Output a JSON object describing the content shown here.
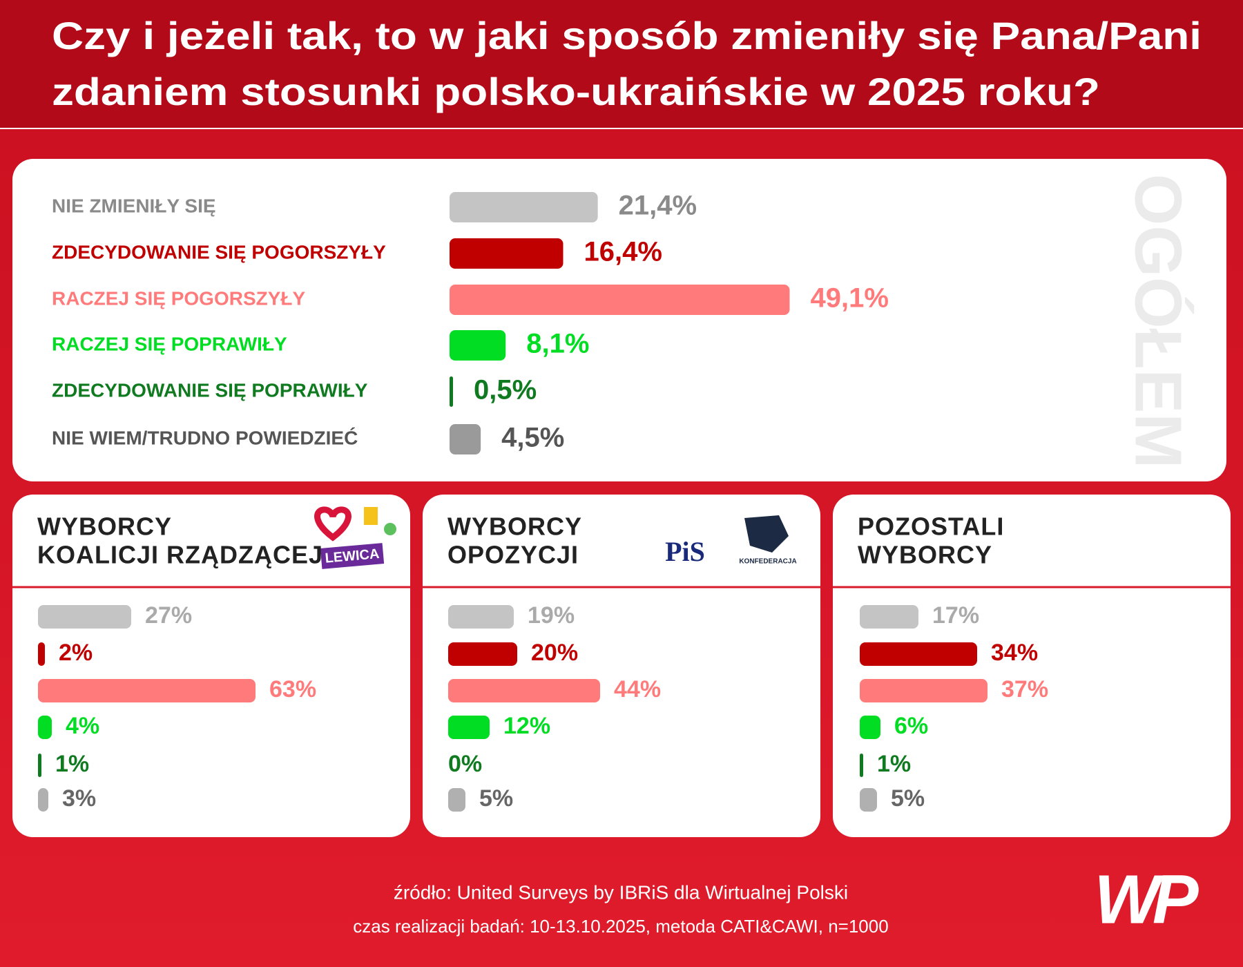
{
  "title": [
    "Czy i jeżeli tak, to w jaki sposób zmieniły się Pana/Pani",
    "zdaniem stosunki polsko-ukraińskie w 2025 roku?"
  ],
  "chart_data": [
    {
      "type": "bar",
      "title": "OGÓŁEM",
      "categories": [
        "NIE ZMIENIŁY SIĘ",
        "ZDECYDOWANIE SIĘ POGORSZYŁY",
        "RACZEJ SIĘ POGORSZYŁY",
        "RACZEJ SIĘ POPRAWIŁY",
        "ZDECYDOWANIE SIĘ POPRAWIŁY",
        "NIE WIEM/TRUDNO POWIEDZIEĆ"
      ],
      "values": [
        21.4,
        16.4,
        49.1,
        8.1,
        0.5,
        4.5
      ],
      "value_labels": [
        "21,4%",
        "16,4%",
        "49,1%",
        "8,1%",
        "0,5%",
        "4,5%"
      ],
      "colors": [
        "#c4c4c4",
        "#c00000",
        "#ff7b7b",
        "#00dd22",
        "#107a20",
        "#9a9a9a"
      ]
    },
    {
      "type": "bar",
      "title": [
        "WYBORCY",
        "KOALICJI RZĄDZĄCEJ"
      ],
      "logos": [
        "LEWICA"
      ],
      "values": [
        27,
        2,
        63,
        4,
        1,
        3
      ],
      "value_labels": [
        "27%",
        "2%",
        "63%",
        "4%",
        "1%",
        "3%"
      ],
      "colors": [
        "#c4c4c4",
        "#c00000",
        "#ff7b7b",
        "#00dd22",
        "#107a20",
        "#b0b0b0"
      ]
    },
    {
      "type": "bar",
      "title": [
        "WYBORCY",
        "OPOZYCJI"
      ],
      "logos": [
        "PiS",
        "KONFEDERACJA"
      ],
      "values": [
        19,
        20,
        44,
        12,
        0,
        5
      ],
      "value_labels": [
        "19%",
        "20%",
        "44%",
        "12%",
        "0%",
        "5%"
      ],
      "colors": [
        "#c4c4c4",
        "#c00000",
        "#ff7b7b",
        "#00dd22",
        "#107a20",
        "#b0b0b0"
      ]
    },
    {
      "type": "bar",
      "title": [
        "POZOSTALI",
        "WYBORCY"
      ],
      "values": [
        17,
        34,
        37,
        6,
        1,
        5
      ],
      "value_labels": [
        "17%",
        "34%",
        "37%",
        "6%",
        "1%",
        "5%"
      ],
      "colors": [
        "#c4c4c4",
        "#c00000",
        "#ff7b7b",
        "#00dd22",
        "#107a20",
        "#b0b0b0"
      ]
    }
  ],
  "source": "źródło: United Surveys by IBRiS dla Wirtualnej Polski",
  "note": "czas realizacji badań: 10-13.10.2025, metoda CATI&CAWI, n=1000",
  "brand": "WP"
}
